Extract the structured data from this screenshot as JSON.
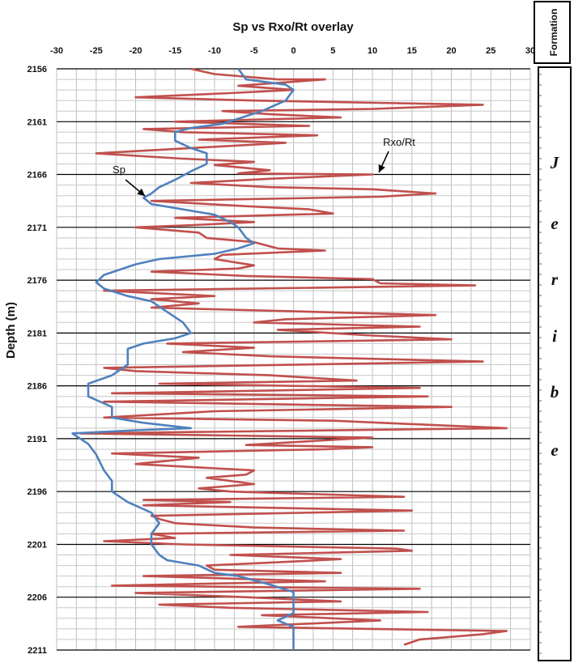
{
  "chart_data": {
    "type": "line",
    "title": "Sp vs Rxo/Rt overlay",
    "ylabel": "Depth (m)",
    "xlabel": "",
    "xlim": [
      -30,
      30
    ],
    "ylim": [
      2211,
      2156
    ],
    "x_ticks": [
      "-30",
      "-25",
      "-20",
      "-15",
      "-10",
      "-5",
      "0",
      "5",
      "10",
      "15",
      "20",
      "25",
      "30"
    ],
    "y_ticks": [
      "2156",
      "2161",
      "2166",
      "2171",
      "2176",
      "2181",
      "2186",
      "2191",
      "2196",
      "2201",
      "2206",
      "2211"
    ],
    "grid": true,
    "annotations": [
      {
        "text": "Sp",
        "target_series": "Sp"
      },
      {
        "text": "Rxo/Rt",
        "target_series": "Rxo/Rt"
      }
    ],
    "series": [
      {
        "name": "Sp",
        "color": "#4f81bd",
        "points": [
          [
            -7,
            2156
          ],
          [
            -6,
            2157
          ],
          [
            -1,
            2157.5
          ],
          [
            0,
            2158
          ],
          [
            -1,
            2159
          ],
          [
            -4,
            2160
          ],
          [
            -9,
            2161.2
          ],
          [
            -13,
            2161.6
          ],
          [
            -15,
            2162
          ],
          [
            -15,
            2162.8
          ],
          [
            -13,
            2163.5
          ],
          [
            -11,
            2164
          ],
          [
            -11,
            2165
          ],
          [
            -13,
            2165.7
          ],
          [
            -15,
            2166.5
          ],
          [
            -17,
            2167.2
          ],
          [
            -18,
            2167.8
          ],
          [
            -19,
            2168.2
          ],
          [
            -18,
            2168.8
          ],
          [
            -14,
            2169.3
          ],
          [
            -10,
            2169.8
          ],
          [
            -8,
            2170.5
          ],
          [
            -7,
            2171
          ],
          [
            -6,
            2172
          ],
          [
            -5,
            2172.5
          ],
          [
            -7,
            2173
          ],
          [
            -10,
            2173.5
          ],
          [
            -17,
            2174
          ],
          [
            -20,
            2174.5
          ],
          [
            -24,
            2175.5
          ],
          [
            -25,
            2176.2
          ],
          [
            -24,
            2176.8
          ],
          [
            -21,
            2177.5
          ],
          [
            -18,
            2178
          ],
          [
            -16,
            2179
          ],
          [
            -14,
            2180
          ],
          [
            -13,
            2181
          ],
          [
            -15,
            2181.5
          ],
          [
            -19,
            2182
          ],
          [
            -21,
            2182.5
          ],
          [
            -21,
            2184
          ],
          [
            -23,
            2185
          ],
          [
            -26,
            2185.8
          ],
          [
            -26,
            2187
          ],
          [
            -23,
            2188
          ],
          [
            -23,
            2189
          ],
          [
            -19,
            2189.5
          ],
          [
            -13,
            2190
          ],
          [
            -20,
            2190.2
          ],
          [
            -28,
            2190.5
          ],
          [
            -26,
            2191.5
          ],
          [
            -25,
            2192.5
          ],
          [
            -24,
            2194
          ],
          [
            -23,
            2195
          ],
          [
            -23,
            2196
          ],
          [
            -21,
            2197
          ],
          [
            -18,
            2198
          ],
          [
            -17,
            2199
          ],
          [
            -18,
            2200
          ],
          [
            -18,
            2201
          ],
          [
            -17,
            2202
          ],
          [
            -16,
            2202.5
          ],
          [
            -12,
            2203
          ],
          [
            -10,
            2203.7
          ],
          [
            -7,
            2204
          ],
          [
            -3,
            2204.8
          ],
          [
            0,
            2205.5
          ],
          [
            0,
            2207.5
          ],
          [
            -2,
            2208.2
          ],
          [
            0,
            2208.8
          ],
          [
            0,
            2211
          ]
        ]
      },
      {
        "name": "Rxo/Rt",
        "color": "#c0504d",
        "points": [
          [
            -13,
            2156
          ],
          [
            -10,
            2156.5
          ],
          [
            -2,
            2157
          ],
          [
            4,
            2157
          ],
          [
            -7,
            2157.6
          ],
          [
            0,
            2158
          ],
          [
            -8,
            2158.3
          ],
          [
            -20,
            2158.7
          ],
          [
            -5,
            2159
          ],
          [
            24,
            2159.4
          ],
          [
            10,
            2159.8
          ],
          [
            -9,
            2160
          ],
          [
            -3,
            2160.3
          ],
          [
            6,
            2160.6
          ],
          [
            -15,
            2161
          ],
          [
            2,
            2161.4
          ],
          [
            -19,
            2161.7
          ],
          [
            -14,
            2162
          ],
          [
            3,
            2162.3
          ],
          [
            -12,
            2162.7
          ],
          [
            -1,
            2163
          ],
          [
            -13,
            2163.5
          ],
          [
            -25,
            2164
          ],
          [
            -14,
            2164.5
          ],
          [
            -5,
            2164.8
          ],
          [
            -10,
            2165.1
          ],
          [
            -3,
            2165.6
          ],
          [
            -7,
            2165.9
          ],
          [
            10,
            2166
          ],
          [
            -3,
            2166.4
          ],
          [
            -13,
            2166.8
          ],
          [
            -3,
            2167.2
          ],
          [
            10,
            2167.4
          ],
          [
            18,
            2167.8
          ],
          [
            11,
            2168.1
          ],
          [
            -18,
            2168.5
          ],
          [
            -6,
            2169
          ],
          [
            2,
            2169.3
          ],
          [
            5,
            2169.7
          ],
          [
            -15,
            2170.1
          ],
          [
            -5,
            2170.5
          ],
          [
            -13,
            2170.8
          ],
          [
            -20,
            2171
          ],
          [
            -12,
            2171.5
          ],
          [
            -11,
            2172
          ],
          [
            -5,
            2172.4
          ],
          [
            -2,
            2173
          ],
          [
            4,
            2173.2
          ],
          [
            -9,
            2173.6
          ],
          [
            -10,
            2174
          ],
          [
            -5,
            2174.6
          ],
          [
            -7,
            2174.9
          ],
          [
            -18,
            2175.2
          ],
          [
            -6,
            2175.6
          ],
          [
            10,
            2175.9
          ],
          [
            11,
            2176.3
          ],
          [
            23,
            2176.5
          ],
          [
            -24,
            2177
          ],
          [
            -10,
            2177.5
          ],
          [
            -18,
            2177.8
          ],
          [
            -12,
            2178.2
          ],
          [
            -18,
            2178.6
          ],
          [
            18,
            2179.3
          ],
          [
            -1,
            2179.7
          ],
          [
            -5,
            2180
          ],
          [
            16,
            2180.4
          ],
          [
            -2,
            2180.7
          ],
          [
            9,
            2181.2
          ],
          [
            20,
            2181.6
          ],
          [
            -16,
            2182
          ],
          [
            -5,
            2182.4
          ],
          [
            -14,
            2182.8
          ],
          [
            -3,
            2183.2
          ],
          [
            24,
            2183.7
          ],
          [
            -24,
            2184.3
          ],
          [
            -20,
            2184.6
          ],
          [
            -3,
            2185
          ],
          [
            8,
            2185.5
          ],
          [
            -17,
            2185.8
          ],
          [
            16,
            2186.2
          ],
          [
            -23,
            2186.7
          ],
          [
            17,
            2187
          ],
          [
            -24,
            2187.5
          ],
          [
            20,
            2188
          ],
          [
            -10,
            2188.4
          ],
          [
            -24,
            2189
          ],
          [
            5,
            2189.3
          ],
          [
            27,
            2190
          ],
          [
            -27,
            2190.5
          ],
          [
            -8,
            2190.7
          ],
          [
            10,
            2190.9
          ],
          [
            3,
            2191.2
          ],
          [
            -6,
            2191.6
          ],
          [
            10,
            2191.8
          ],
          [
            4,
            2192
          ],
          [
            -23,
            2192.4
          ],
          [
            -12,
            2192.8
          ],
          [
            -20,
            2193.4
          ],
          [
            -5,
            2194
          ],
          [
            -6,
            2194.4
          ],
          [
            -11,
            2194.7
          ],
          [
            -5,
            2195.3
          ],
          [
            -12,
            2195.7
          ],
          [
            -8,
            2196
          ],
          [
            14,
            2196.5
          ],
          [
            -19,
            2196.8
          ],
          [
            -8,
            2197
          ],
          [
            -19,
            2197.3
          ],
          [
            15,
            2197.8
          ],
          [
            -18,
            2198.3
          ],
          [
            -17,
            2198.6
          ],
          [
            -15,
            2199
          ],
          [
            -5,
            2199.4
          ],
          [
            14,
            2199.7
          ],
          [
            -18,
            2200
          ],
          [
            -15,
            2200.4
          ],
          [
            -24,
            2200.7
          ],
          [
            -14,
            2201
          ],
          [
            13,
            2201.4
          ],
          [
            15,
            2201.6
          ],
          [
            -8,
            2202
          ],
          [
            6,
            2202.4
          ],
          [
            -2,
            2202.7
          ],
          [
            -11,
            2203
          ],
          [
            -10,
            2203.4
          ],
          [
            6,
            2203.7
          ],
          [
            -19,
            2204
          ],
          [
            4,
            2204.5
          ],
          [
            -23,
            2204.9
          ],
          [
            16,
            2205.2
          ],
          [
            -20,
            2205.6
          ],
          [
            -6,
            2206
          ],
          [
            6,
            2206.4
          ],
          [
            -17,
            2206.7
          ],
          [
            -8,
            2207
          ],
          [
            17,
            2207.4
          ],
          [
            -4,
            2207.7
          ],
          [
            11,
            2208.2
          ],
          [
            -7,
            2208.8
          ],
          [
            27,
            2209.2
          ],
          [
            24,
            2209.5
          ],
          [
            16,
            2210
          ],
          [
            14,
            2210.5
          ]
        ]
      }
    ]
  },
  "formation": {
    "header": "Formation",
    "letters": [
      "J",
      "e",
      "r",
      "i",
      "b",
      "e"
    ]
  }
}
